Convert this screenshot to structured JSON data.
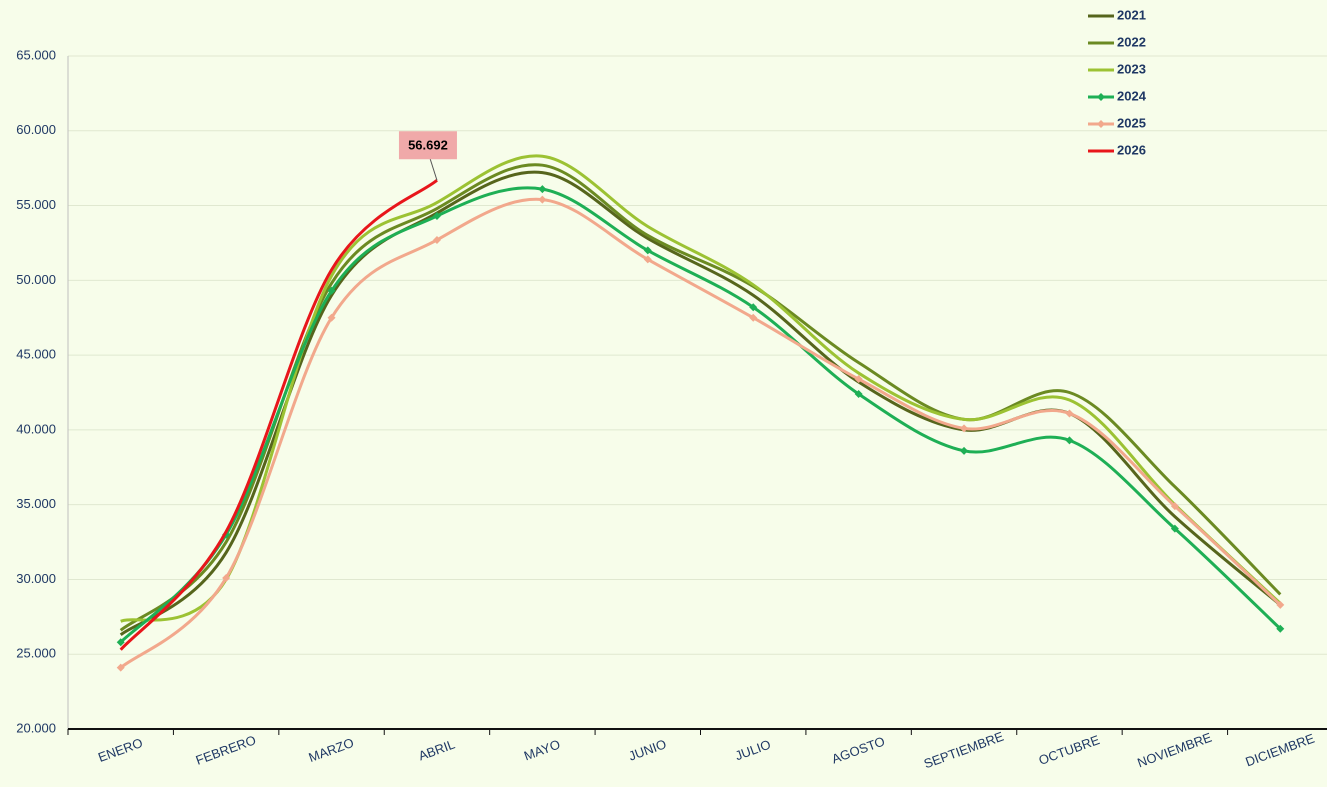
{
  "chart_data": {
    "type": "line",
    "categories": [
      "ENERO",
      "FEBRERO",
      "MARZO",
      "ABRIL",
      "MAYO",
      "JUNIO",
      "JULIO",
      "AGOSTO",
      "SEPTIEMBRE",
      "OCTUBRE",
      "NOVIEMBRE",
      "DICIEMBRE"
    ],
    "series": [
      {
        "name": "2021",
        "color": "#56651c",
        "markers": false,
        "values": [
          26300,
          31800,
          49000,
          54500,
          57200,
          52800,
          49000,
          43200,
          40000,
          41100,
          34200,
          28300
        ]
      },
      {
        "name": "2022",
        "color": "#6b8a22",
        "markers": false,
        "values": [
          26600,
          32500,
          49800,
          54800,
          57700,
          53000,
          49600,
          44500,
          40700,
          42500,
          36200,
          29000
        ]
      },
      {
        "name": "2023",
        "color": "#9cc233",
        "markers": false,
        "values": [
          27200,
          30000,
          50300,
          55200,
          58300,
          53600,
          49700,
          43800,
          40700,
          42000,
          35000,
          28400
        ]
      },
      {
        "name": "2024",
        "color": "#1eaf55",
        "markers": true,
        "values": [
          25800,
          33000,
          49300,
          54300,
          56100,
          52000,
          48200,
          42400,
          38600,
          39300,
          33400,
          26700
        ]
      },
      {
        "name": "2025",
        "color": "#f2a88c",
        "markers": true,
        "values": [
          24100,
          30100,
          47500,
          52700,
          55400,
          51400,
          47500,
          43400,
          40100,
          41100,
          34900,
          28300
        ]
      },
      {
        "name": "2026",
        "color": "#e8161b",
        "markers": false,
        "values": [
          25300,
          33200,
          50700,
          56692,
          null,
          null,
          null,
          null,
          null,
          null,
          null,
          null
        ],
        "value_labels": [
          null,
          null,
          null,
          "56.692",
          null,
          null,
          null,
          null,
          null,
          null,
          null,
          null
        ]
      }
    ],
    "ylim": [
      20000,
      65000
    ],
    "yticks": [
      {
        "value": 20000,
        "label": "20.000"
      },
      {
        "value": 25000,
        "label": "25.000"
      },
      {
        "value": 30000,
        "label": "30.000"
      },
      {
        "value": 35000,
        "label": "35.000"
      },
      {
        "value": 40000,
        "label": "40.000"
      },
      {
        "value": 45000,
        "label": "45.000"
      },
      {
        "value": 50000,
        "label": "50.000"
      },
      {
        "value": 55000,
        "label": "55.000"
      },
      {
        "value": 60000,
        "label": "60.000"
      },
      {
        "value": 65000,
        "label": "65.000"
      }
    ],
    "grid": true,
    "legend": "top-right"
  }
}
